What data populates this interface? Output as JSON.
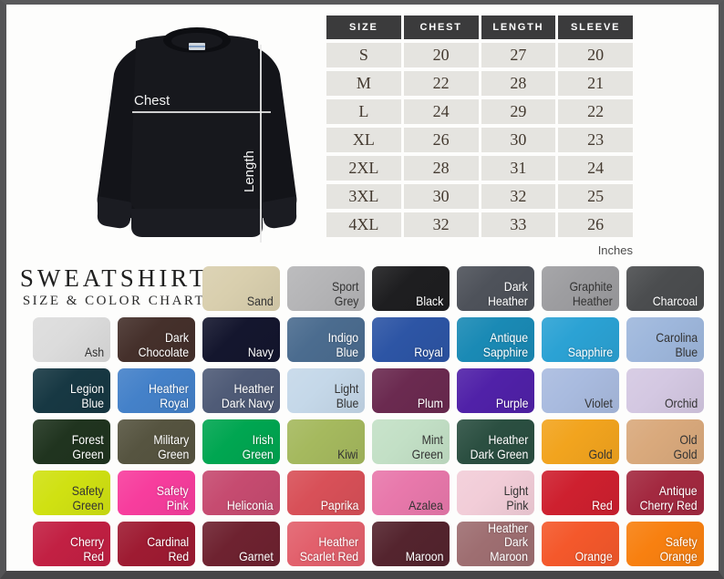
{
  "diagram": {
    "chest_label": "Chest",
    "length_label": "Length"
  },
  "chart_data": {
    "type": "table",
    "title": "SWEATSHIRT",
    "subtitle": "SIZE & COLOR CHART",
    "units": "Inches",
    "size_table": {
      "columns": [
        "SIZE",
        "CHEST",
        "LENGTH",
        "SLEEVE"
      ],
      "rows": [
        [
          "S",
          "20",
          "27",
          "20"
        ],
        [
          "M",
          "22",
          "28",
          "21"
        ],
        [
          "L",
          "24",
          "29",
          "22"
        ],
        [
          "XL",
          "26",
          "30",
          "23"
        ],
        [
          "2XL",
          "28",
          "31",
          "24"
        ],
        [
          "3XL",
          "30",
          "32",
          "25"
        ],
        [
          "4XL",
          "32",
          "33",
          "26"
        ]
      ]
    },
    "color_swatches": [
      {
        "label": "Sand",
        "hex": "#d9cfae",
        "text": "dark"
      },
      {
        "label": "Sport\nGrey",
        "hex": "#b5b5b7",
        "text": "dark"
      },
      {
        "label": "Black",
        "hex": "#1e1e20",
        "text": "light"
      },
      {
        "label": "Dark\nHeather",
        "hex": "#4e525a",
        "text": "light"
      },
      {
        "label": "Graphite\nHeather",
        "hex": "#9d9da0",
        "text": "dark"
      },
      {
        "label": "Charcoal",
        "hex": "#4b4d4f",
        "text": "light"
      },
      {
        "label": "Ash",
        "hex": "#dcdcdc",
        "text": "dark"
      },
      {
        "label": "Dark\nChocolate",
        "hex": "#45302b",
        "text": "light"
      },
      {
        "label": "Navy",
        "hex": "#14162e",
        "text": "light"
      },
      {
        "label": "Indigo\nBlue",
        "hex": "#4b6c8f",
        "text": "light"
      },
      {
        "label": "Royal",
        "hex": "#2d55a5",
        "text": "light"
      },
      {
        "label": "Antique\nSapphire",
        "hex": "#1a8ab5",
        "text": "light"
      },
      {
        "label": "Sapphire",
        "hex": "#2ba2d4",
        "text": "light"
      },
      {
        "label": "Carolina\nBlue",
        "hex": "#9eb7dc",
        "text": "dark"
      },
      {
        "label": "Legion\nBlue",
        "hex": "#173843",
        "text": "light"
      },
      {
        "label": "Heather\nRoyal",
        "hex": "#4481c9",
        "text": "light"
      },
      {
        "label": "Heather\nDark Navy",
        "hex": "#4f5b77",
        "text": "light"
      },
      {
        "label": "Light\nBlue",
        "hex": "#c5d8e9",
        "text": "dark"
      },
      {
        "label": "Plum",
        "hex": "#6b2a50",
        "text": "light"
      },
      {
        "label": "Purple",
        "hex": "#5021a8",
        "text": "light"
      },
      {
        "label": "Violet",
        "hex": "#a9bbdf",
        "text": "dark"
      },
      {
        "label": "Orchid",
        "hex": "#d4c8e2",
        "text": "dark"
      },
      {
        "label": "Forest\nGreen",
        "hex": "#20341f",
        "text": "light"
      },
      {
        "label": "Military\nGreen",
        "hex": "#565440",
        "text": "light"
      },
      {
        "label": "Irish\nGreen",
        "hex": "#00a651",
        "text": "light"
      },
      {
        "label": "Kiwi",
        "hex": "#a5b95e",
        "text": "dark"
      },
      {
        "label": "Mint\nGreen",
        "hex": "#c3e0c6",
        "text": "dark"
      },
      {
        "label": "Heather\nDark Green",
        "hex": "#2b4f41",
        "text": "light"
      },
      {
        "label": "Gold",
        "hex": "#f2a41e",
        "text": "dark"
      },
      {
        "label": "Old\nGold",
        "hex": "#d9a97c",
        "text": "dark"
      },
      {
        "label": "Safety\nGreen",
        "hex": "#d0e112",
        "text": "dark"
      },
      {
        "label": "Safety\nPink",
        "hex": "#f73d9d",
        "text": "light"
      },
      {
        "label": "Heliconia",
        "hex": "#c64b70",
        "text": "light"
      },
      {
        "label": "Paprika",
        "hex": "#d85058",
        "text": "light"
      },
      {
        "label": "Azalea",
        "hex": "#e878ab",
        "text": "dark"
      },
      {
        "label": "Light\nPink",
        "hex": "#f2cdd8",
        "text": "dark"
      },
      {
        "label": "Red",
        "hex": "#ce202f",
        "text": "light"
      },
      {
        "label": "Antique\nCherry Red",
        "hex": "#a32940",
        "text": "light"
      },
      {
        "label": "Cherry\nRed",
        "hex": "#c22043",
        "text": "light"
      },
      {
        "label": "Cardinal\nRed",
        "hex": "#9e1b32",
        "text": "light"
      },
      {
        "label": "Garnet",
        "hex": "#6e2230",
        "text": "light"
      },
      {
        "label": "Heather\nScarlet Red",
        "hex": "#e2606c",
        "text": "light"
      },
      {
        "label": "Maroon",
        "hex": "#54242e",
        "text": "light"
      },
      {
        "label": "Heather\nDark Maroon",
        "hex": "#9e6e71",
        "text": "light"
      },
      {
        "label": "Orange",
        "hex": "#f4582b",
        "text": "light"
      },
      {
        "label": "Safety\nOrange",
        "hex": "#f88010",
        "text": "light"
      }
    ]
  }
}
